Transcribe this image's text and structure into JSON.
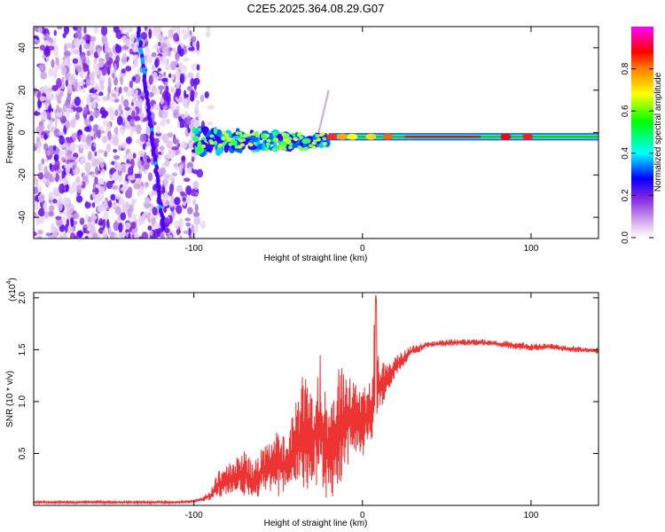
{
  "title": "C2E5.2025.364.08.29.G07",
  "chart_data": [
    {
      "type": "heatmap",
      "name": "spectrogram",
      "xlabel": "Height of straight line (km)",
      "ylabel": "Frequency (Hz)",
      "xlim": [
        -195,
        140
      ],
      "ylim": [
        -50,
        50
      ],
      "xticks": [
        -100,
        0,
        100
      ],
      "yticks": [
        -40,
        -20,
        0,
        20,
        40
      ],
      "colorbar": {
        "label": "Normalized spectral amplitude",
        "range": [
          0,
          1
        ],
        "ticks": [
          "0.0",
          "0.2",
          "0.4",
          "0.6",
          "0.8"
        ],
        "colors": [
          "#ffffff",
          "#e6c8f0",
          "#8a2be2",
          "#0000ff",
          "#00ffff",
          "#00ff00",
          "#ffff00",
          "#ff8000",
          "#ff0000",
          "#ff00ff"
        ]
      },
      "features": [
        {
          "name": "noise region",
          "x_range": [
            -195,
            -97
          ],
          "freq_range": [
            -50,
            50
          ]
        },
        {
          "name": "diagonal streak",
          "x": [
            -133,
            -118
          ],
          "y": [
            50,
            -45
          ]
        },
        {
          "name": "carrier trace",
          "x": [
            -100,
            140
          ],
          "y": [
            -5,
            -2
          ]
        },
        {
          "name": "spike",
          "x": [
            -26,
            -20
          ],
          "y": [
            0,
            20
          ]
        }
      ]
    },
    {
      "type": "line",
      "name": "snr",
      "xlabel": "Height of straight line (km)",
      "ylabel": "SNR (10 * v/v)",
      "yscale_label": "(x10",
      "yscale_exp": "4",
      "scale": 10000,
      "xlim": [
        -195,
        140
      ],
      "ylim": [
        0,
        2.05
      ],
      "xticks": [
        -100,
        0,
        100
      ],
      "yticks": [
        "0.5",
        "1.0",
        "1.5",
        "2.0"
      ],
      "color": "#ee3333",
      "x": [
        -195,
        -150,
        -110,
        -100,
        -95,
        -90,
        -85,
        -80,
        -75,
        -70,
        -65,
        -60,
        -55,
        -50,
        -45,
        -40,
        -35,
        -30,
        -25,
        -20,
        -15,
        -10,
        -5,
        0,
        5,
        8,
        10,
        15,
        20,
        25,
        30,
        40,
        50,
        60,
        70,
        80,
        90,
        100,
        110,
        120,
        130,
        140
      ],
      "min": [
        0.02,
        0.02,
        0.02,
        0.03,
        0.04,
        0.05,
        0.07,
        0.1,
        0.12,
        0.08,
        0.06,
        0.1,
        0.14,
        0.05,
        0.1,
        0.2,
        0.08,
        0.15,
        0.1,
        0.05,
        0.1,
        0.35,
        0.5,
        0.45,
        0.65,
        0.35,
        0.85,
        1.1,
        1.25,
        1.35,
        1.45,
        1.52,
        1.53,
        1.54,
        1.54,
        1.53,
        1.5,
        1.49,
        1.5,
        1.48,
        1.47,
        1.46
      ],
      "max": [
        0.04,
        0.04,
        0.04,
        0.05,
        0.08,
        0.15,
        0.35,
        0.4,
        0.45,
        0.55,
        0.4,
        0.55,
        0.6,
        0.75,
        0.65,
        1.0,
        1.3,
        1.1,
        1.55,
        0.9,
        1.4,
        1.3,
        1.2,
        1.1,
        1.25,
        2.05,
        1.4,
        1.35,
        1.45,
        1.5,
        1.55,
        1.58,
        1.6,
        1.6,
        1.6,
        1.59,
        1.58,
        1.56,
        1.56,
        1.55,
        1.53,
        1.52
      ]
    }
  ]
}
